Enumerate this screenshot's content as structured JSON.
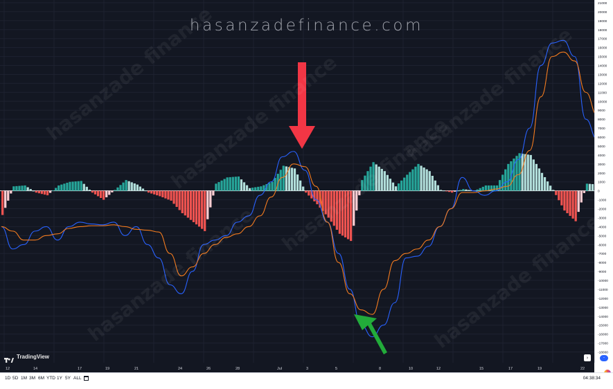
{
  "watermark_text": "hasanzadefinance.com",
  "logo_text": "TradingView",
  "pattern_text": "hasanzade finance",
  "toolbar": {
    "ranges": [
      "1D",
      "5D",
      "1M",
      "3M",
      "6M",
      "YTD",
      "1Y",
      "5Y",
      "ALL"
    ],
    "clock": "04:38:34"
  },
  "colors": {
    "background": "#131722",
    "fast_line": "#2962ff",
    "slow_line": "#f57c1f",
    "hist_pos_strong": "#26a69a",
    "hist_pos_weak": "#b2dfdb",
    "hist_neg_strong": "#ef5350",
    "hist_neg_weak": "#ffcdd2",
    "arrow_red": "#f23645",
    "arrow_green": "#22ab3a"
  },
  "chart_data": {
    "type": "line",
    "ylim": [
      -18500,
      21000
    ],
    "y_ticks": [
      "21000",
      "20000",
      "19000",
      "18000",
      "17000",
      "16000",
      "15000",
      "14000",
      "13000",
      "12000",
      "11000",
      "10000",
      "9000",
      "8000",
      "7000",
      "6000",
      "5000",
      "4000",
      "3000",
      "2000",
      "1000",
      "0",
      "-1000",
      "-2000",
      "-3000",
      "-4000",
      "-5000",
      "-6000",
      "-7000",
      "-8000",
      "-9000",
      "-10000",
      "-11000",
      "-12000",
      "-13000",
      "-14000",
      "-15000",
      "-16000",
      "-17000",
      "-18000"
    ],
    "x_ticks": [
      "12",
      "14",
      "17",
      "19",
      "21",
      "24",
      "26",
      "28",
      "Jul",
      "3",
      "5",
      "8",
      "10",
      "12",
      "15",
      "17",
      "19",
      "22"
    ],
    "x": [
      0,
      4,
      8,
      12,
      16,
      20,
      24,
      28,
      32,
      36,
      40,
      44,
      48,
      52,
      56,
      60,
      64,
      68,
      72,
      76,
      80,
      84,
      88,
      92,
      96,
      100,
      104,
      108,
      112,
      116,
      120,
      124,
      128,
      132,
      136,
      140,
      144,
      148,
      152,
      156,
      160,
      164,
      168,
      172,
      176,
      180,
      184,
      188,
      192,
      196,
      200,
      204,
      208,
      212
    ],
    "series": [
      {
        "values": [
          -4000,
          -6500,
          -6000,
          -4500,
          -4000,
          -5500,
          -4000,
          -3500,
          -3700,
          -3800,
          -3500,
          -5000,
          -4000,
          -6000,
          -7500,
          -10500,
          -11500,
          -9000,
          -6000,
          -5500,
          -5000,
          -3500,
          -2800,
          -500,
          1000,
          3800,
          4400,
          2300,
          -1000,
          -3500,
          -7000,
          -11000,
          -15000,
          -16300,
          -15000,
          -12500,
          -7500,
          -7300,
          -6200,
          -4000,
          -2000,
          1500,
          0,
          -500,
          0,
          1000,
          3500,
          7000,
          14000,
          16500,
          16800,
          15000,
          8000,
          5800
        ]
      },
      {
        "values": [
          -4000,
          -4500,
          -5500,
          -5500,
          -5000,
          -4800,
          -4200,
          -4000,
          -3900,
          -3900,
          -3800,
          -4000,
          -4300,
          -4400,
          -4600,
          -7000,
          -9500,
          -8500,
          -7000,
          -6000,
          -5200,
          -4800,
          -4000,
          -2800,
          -700,
          1500,
          3000,
          2700,
          500,
          -3500,
          -8000,
          -11500,
          -13300,
          -13800,
          -11000,
          -7800,
          -7000,
          -6500,
          -5500,
          -4000,
          -2000,
          -200,
          -200,
          0,
          200,
          500,
          1800,
          4500,
          10500,
          15000,
          15500,
          14500,
          11000,
          8500
        ]
      }
    ],
    "histogram": {
      "x": [
        0,
        4,
        8,
        12,
        16,
        20,
        24,
        28,
        32,
        36,
        40,
        44,
        48,
        52,
        56,
        60,
        64,
        68,
        72,
        76,
        80,
        84,
        88,
        92,
        96,
        100,
        104,
        108,
        112,
        116,
        120,
        124,
        128,
        132,
        136,
        140,
        144,
        148,
        152,
        156,
        160,
        164,
        168,
        172,
        176,
        180,
        184,
        188,
        192,
        196,
        200,
        204,
        208,
        212
      ],
      "values": [
        -2700,
        500,
        600,
        -200,
        -500,
        600,
        1000,
        1100,
        -200,
        -1000,
        100,
        1200,
        700,
        -200,
        -600,
        -1100,
        -2500,
        -3500,
        -4500,
        800,
        1500,
        1600,
        300,
        500,
        1000,
        2800,
        2500,
        -200,
        -1500,
        -3000,
        -4800,
        -5600,
        1200,
        3200,
        2200,
        500,
        1800,
        3000,
        2200,
        100,
        -200,
        200,
        0,
        600,
        600,
        3000,
        4200,
        4000,
        2000,
        100,
        -2200,
        -3400,
        800,
        700
      ]
    }
  }
}
